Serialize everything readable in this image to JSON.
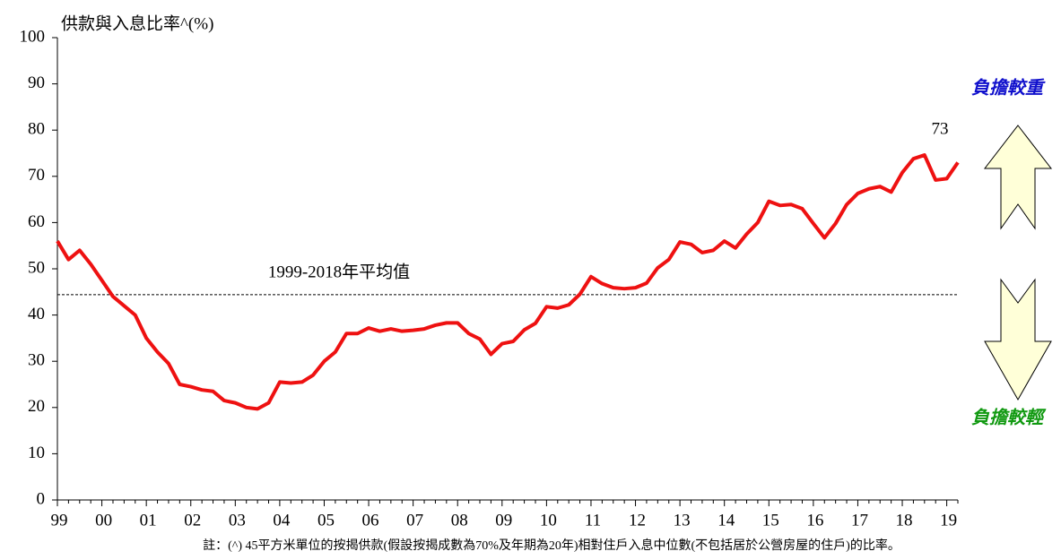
{
  "chart_data": {
    "type": "line",
    "y_axis_label": "供款與入息比率^(%)",
    "categories": [
      "99",
      null,
      null,
      null,
      "00",
      null,
      null,
      null,
      "01",
      null,
      null,
      null,
      "02",
      null,
      null,
      null,
      "03",
      null,
      null,
      null,
      "04",
      null,
      null,
      null,
      "05",
      null,
      null,
      null,
      "06",
      null,
      null,
      null,
      "07",
      null,
      null,
      null,
      "08",
      null,
      null,
      null,
      "09",
      null,
      null,
      null,
      "10",
      null,
      null,
      null,
      "11",
      null,
      null,
      null,
      "12",
      null,
      null,
      null,
      "13",
      null,
      null,
      null,
      "14",
      null,
      null,
      null,
      "15",
      null,
      null,
      null,
      "16",
      null,
      null,
      null,
      "17",
      null,
      null,
      null,
      "18",
      null,
      null,
      null,
      "19",
      null
    ],
    "series": [
      {
        "color": "#ee1111",
        "values": [
          56,
          52,
          54,
          51,
          47.5,
          44,
          42,
          40,
          35,
          32,
          29.5,
          25,
          24.5,
          23.8,
          23.5,
          21.5,
          21,
          20,
          19.7,
          21,
          25.5,
          25.3,
          25.5,
          27,
          30,
          32,
          36,
          36,
          37.2,
          36.5,
          37,
          36.5,
          36.7,
          37,
          37.8,
          38.3,
          38.3,
          36,
          34.8,
          31.5,
          33.8,
          34.3,
          36.8,
          38.2,
          41.8,
          41.5,
          42.2,
          44.5,
          48.3,
          46.8,
          45.9,
          45.7,
          45.9,
          46.9,
          50.2,
          52,
          55.8,
          55.3,
          53.5,
          54,
          56,
          54.5,
          57.5,
          60,
          64.6,
          63.7,
          63.9,
          63,
          59.8,
          56.7,
          59.8,
          63.9,
          66.3,
          67.3,
          67.8,
          66.6,
          70.8,
          73.8,
          74.6,
          69.2,
          69.5,
          73
        ]
      }
    ],
    "ylim": [
      0,
      100
    ],
    "yticks": [
      0,
      10,
      20,
      30,
      40,
      50,
      60,
      70,
      80,
      90,
      100
    ],
    "average": 44.4,
    "average_label": "1999-2018年平均值",
    "burden_high": "負擔較重",
    "burden_low": "負擔較輕",
    "note": "註：(^) 45平方米單位的按揭供款(假設按揭成數為70%及年期為20年)相對住戶入息中位數(不包括居於公營房屋的住戶)的比率。"
  }
}
